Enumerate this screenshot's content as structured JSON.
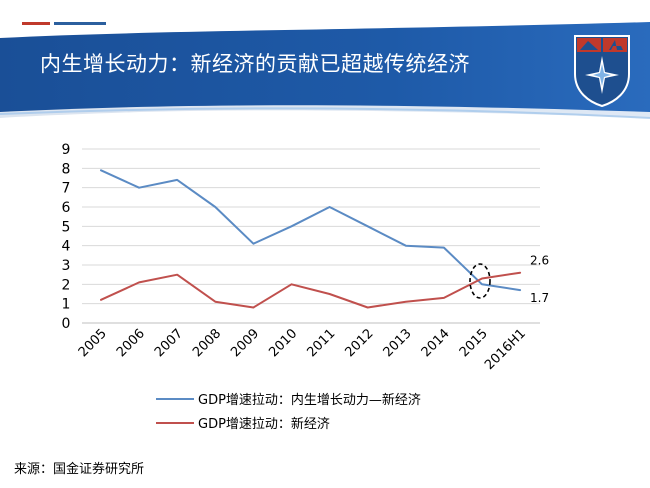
{
  "title": "内生增长动力：新经济的贡献已超越传统经济",
  "source": "来源：国金证券研究所",
  "colors": {
    "series_blue": "#5b8bc4",
    "series_red": "#c0504d",
    "header_blue": "#1e5aa8",
    "grid": "#d9d9d9"
  },
  "chart_data": {
    "type": "line",
    "categories": [
      "2005",
      "2006",
      "2007",
      "2008",
      "2009",
      "2010",
      "2011",
      "2012",
      "2013",
      "2014",
      "2015",
      "2016H1"
    ],
    "ylim": [
      0,
      9
    ],
    "yticks": [
      "0",
      "1",
      "2",
      "3",
      "4",
      "5",
      "6",
      "7",
      "8",
      "9"
    ],
    "grid": true,
    "legend_position": "bottom",
    "series": [
      {
        "name": "GDP增速拉动：内生增长动力—新经济",
        "color": "#5b8bc4",
        "values": [
          7.9,
          7.0,
          7.4,
          6.0,
          4.1,
          5.0,
          6.0,
          5.0,
          4.0,
          3.9,
          2.0,
          1.7
        ],
        "end_label": "1.7"
      },
      {
        "name": "GDP增速拉动：新经济",
        "color": "#c0504d",
        "values": [
          1.2,
          2.1,
          2.5,
          1.1,
          0.8,
          2.0,
          1.5,
          0.8,
          1.1,
          1.3,
          2.3,
          2.6
        ],
        "end_label": "2.6"
      }
    ],
    "annotation": "dashed-ellipse-crossover-2015"
  }
}
